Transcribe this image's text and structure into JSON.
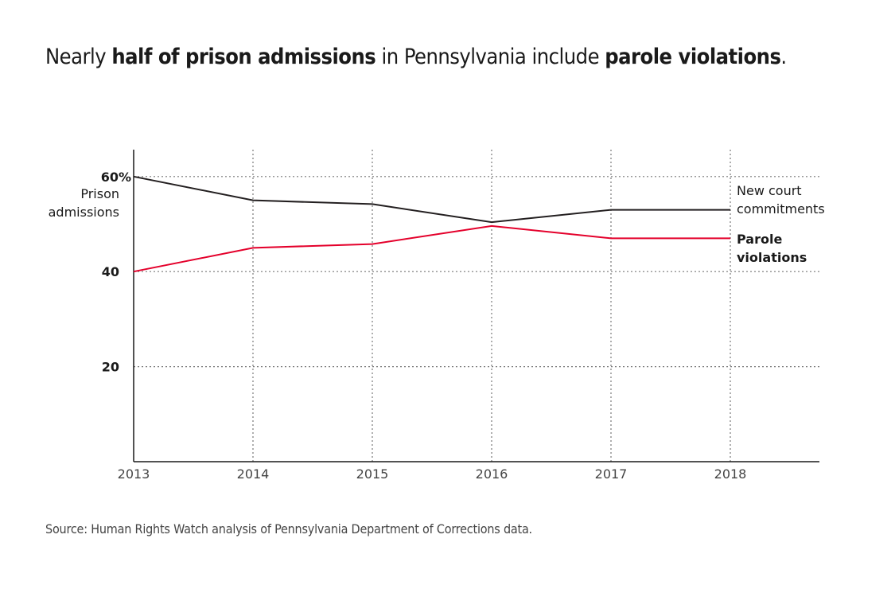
{
  "title": {
    "parts": [
      {
        "text": "Nearly ",
        "bold": false
      },
      {
        "text": "half of prison admissions",
        "bold": true
      },
      {
        "text": " in Pennsylvania include ",
        "bold": false
      },
      {
        "text": "parole violations",
        "bold": true
      },
      {
        "text": ".",
        "bold": false
      }
    ]
  },
  "source": "Source: Human Rights Watch analysis of Pennsylvania Department of Corrections data.",
  "chart_data": {
    "type": "line",
    "title": "Nearly half of prison admissions in Pennsylvania include parole violations.",
    "ylabel": "Prison admissions",
    "xlabel": "",
    "x": [
      "2013",
      "2014",
      "2015",
      "2016",
      "2017",
      "2018"
    ],
    "ylim": [
      0,
      66
    ],
    "yticks": [
      20,
      40,
      60
    ],
    "ytick_labels": [
      "20",
      "40",
      "60%"
    ],
    "grid": true,
    "legend": "direct labels at right end of lines",
    "series": [
      {
        "name": "New court commitments",
        "color": "#231f20",
        "label_bold": false,
        "values": [
          60,
          55,
          54.2,
          50.4,
          53,
          53
        ]
      },
      {
        "name": "Parole violations",
        "color": "#e4002b",
        "label_bold": true,
        "values": [
          40,
          45,
          45.8,
          49.6,
          47,
          47
        ]
      }
    ]
  }
}
